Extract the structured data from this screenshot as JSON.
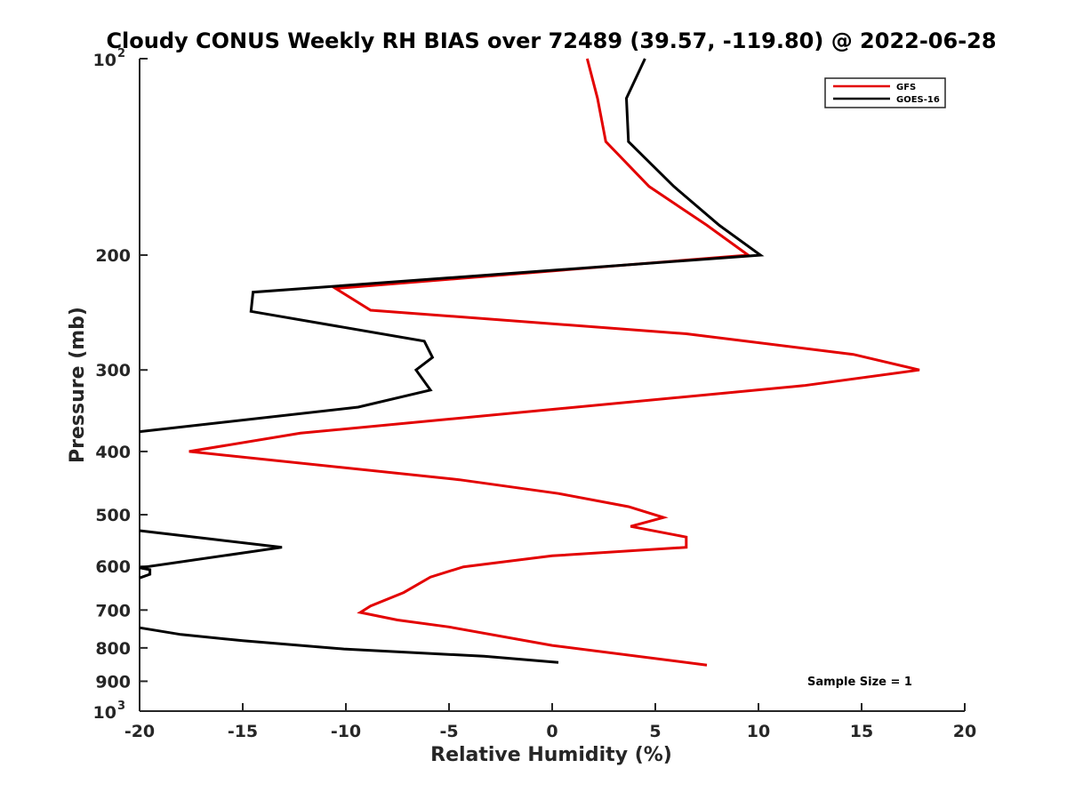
{
  "chart_data": {
    "type": "line",
    "title": "Cloudy CONUS Weekly RH BIAS over 72489 (39.57, -119.80) @ 2022-06-28",
    "xlabel": "Relative Humidity (%)",
    "ylabel": "Pressure (mb)",
    "xlim": [
      -20,
      20
    ],
    "ylim": [
      100,
      1000
    ],
    "y_scale": "log",
    "y_reversed": true,
    "grid": false,
    "legend_position": "top-right",
    "x_ticks": [
      {
        "value": -20,
        "label": "-20"
      },
      {
        "value": -15,
        "label": "-15"
      },
      {
        "value": -10,
        "label": "-10"
      },
      {
        "value": -5,
        "label": "-5"
      },
      {
        "value": 0,
        "label": "0"
      },
      {
        "value": 5,
        "label": "5"
      },
      {
        "value": 10,
        "label": "10"
      },
      {
        "value": 15,
        "label": "15"
      },
      {
        "value": 20,
        "label": "20"
      }
    ],
    "y_ticks": [
      {
        "value": 100,
        "base": "10",
        "exp": "2"
      },
      {
        "value": 200,
        "label": "200"
      },
      {
        "value": 300,
        "label": "300"
      },
      {
        "value": 400,
        "label": "400"
      },
      {
        "value": 500,
        "label": "500"
      },
      {
        "value": 600,
        "label": "600"
      },
      {
        "value": 700,
        "label": "700"
      },
      {
        "value": 800,
        "label": "800"
      },
      {
        "value": 900,
        "label": "900"
      },
      {
        "value": 1000,
        "base": "10",
        "exp": "3"
      }
    ],
    "annotation": "Sample Size = 1",
    "series": [
      {
        "name": "GFS",
        "color": "#e30000",
        "points": [
          {
            "x": 1.7,
            "y": 100
          },
          {
            "x": 2.2,
            "y": 115
          },
          {
            "x": 2.6,
            "y": 134
          },
          {
            "x": 4.7,
            "y": 157
          },
          {
            "x": 7.5,
            "y": 180
          },
          {
            "x": 9.5,
            "y": 200
          },
          {
            "x": -10.5,
            "y": 225
          },
          {
            "x": -8.8,
            "y": 243
          },
          {
            "x": 6.5,
            "y": 264
          },
          {
            "x": 14.6,
            "y": 284
          },
          {
            "x": 17.8,
            "y": 300
          },
          {
            "x": 12.2,
            "y": 317
          },
          {
            "x": -12.2,
            "y": 375
          },
          {
            "x": -17.6,
            "y": 400
          },
          {
            "x": -4.5,
            "y": 442
          },
          {
            "x": 0.3,
            "y": 464
          },
          {
            "x": 3.7,
            "y": 486
          },
          {
            "x": 5.4,
            "y": 505
          },
          {
            "x": 3.8,
            "y": 521
          },
          {
            "x": 6.5,
            "y": 541
          },
          {
            "x": 6.5,
            "y": 561
          },
          {
            "x": 0,
            "y": 578
          },
          {
            "x": -4.3,
            "y": 601
          },
          {
            "x": -5.9,
            "y": 623
          },
          {
            "x": -7.2,
            "y": 658
          },
          {
            "x": -8.8,
            "y": 690
          },
          {
            "x": -9.3,
            "y": 706
          },
          {
            "x": -7.5,
            "y": 725
          },
          {
            "x": -5.0,
            "y": 743
          },
          {
            "x": 0,
            "y": 793
          },
          {
            "x": 7.5,
            "y": 850
          }
        ]
      },
      {
        "name": "GOES-16",
        "color": "#000000",
        "segments": [
          [
            {
              "x": 4.5,
              "y": 100
            },
            {
              "x": 3.6,
              "y": 115
            },
            {
              "x": 3.7,
              "y": 134
            },
            {
              "x": 5.9,
              "y": 157
            },
            {
              "x": 8.1,
              "y": 180
            },
            {
              "x": 10.1,
              "y": 200
            },
            {
              "x": -14.5,
              "y": 228
            },
            {
              "x": -14.6,
              "y": 244
            },
            {
              "x": -6.2,
              "y": 271
            },
            {
              "x": -5.8,
              "y": 287
            },
            {
              "x": -6.6,
              "y": 300
            },
            {
              "x": -5.9,
              "y": 322
            },
            {
              "x": -9.4,
              "y": 342
            },
            {
              "x": -20,
              "y": 373
            }
          ],
          [
            {
              "x": -20,
              "y": 529
            },
            {
              "x": -16.5,
              "y": 545
            },
            {
              "x": -13.1,
              "y": 561
            },
            {
              "x": -20,
              "y": 603
            }
          ],
          [
            {
              "x": -20,
              "y": 603
            },
            {
              "x": -19.5,
              "y": 607
            },
            {
              "x": -19.5,
              "y": 617
            },
            {
              "x": -20,
              "y": 625
            }
          ],
          [
            {
              "x": -20,
              "y": 745
            },
            {
              "x": -18,
              "y": 763
            },
            {
              "x": -15,
              "y": 780
            },
            {
              "x": -10.1,
              "y": 803
            },
            {
              "x": -3.3,
              "y": 824
            },
            {
              "x": 0.3,
              "y": 842
            }
          ]
        ]
      }
    ]
  }
}
